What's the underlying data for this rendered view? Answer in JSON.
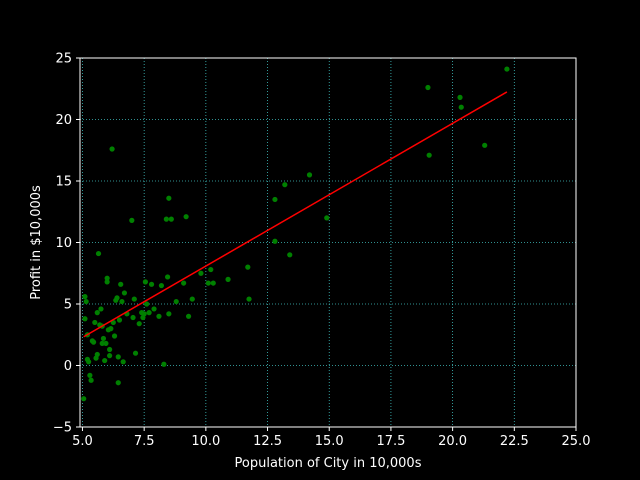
{
  "chart_data": {
    "type": "scatter",
    "title": "",
    "xlabel": "Population of City in 10,000s",
    "ylabel": "Profit in $10,000s",
    "xlim": [
      4.9,
      25.0
    ],
    "ylim": [
      -5,
      25
    ],
    "x_ticks": [
      5.0,
      7.5,
      10.0,
      12.5,
      15.0,
      17.5,
      20.0,
      22.5,
      25.0
    ],
    "x_tick_labels": [
      "5.0",
      "7.5",
      "10.0",
      "12.5",
      "15.0",
      "17.5",
      "20.0",
      "22.5",
      "25.0"
    ],
    "y_ticks": [
      -5,
      0,
      5,
      10,
      15,
      20,
      25
    ],
    "y_tick_labels": [
      "−5",
      "0",
      "5",
      "10",
      "15",
      "20",
      "25"
    ],
    "grid": true,
    "colors": {
      "background": "#000000",
      "points": "#008000",
      "line": "#ff0000",
      "grid": "#40c0c0",
      "axes": "#ffffff"
    },
    "series": [
      {
        "type": "scatter",
        "points": [
          [
            5.05,
            -2.7
          ],
          [
            5.1,
            3.8
          ],
          [
            5.1,
            5.6
          ],
          [
            5.15,
            5.2
          ],
          [
            5.2,
            2.5
          ],
          [
            5.2,
            0.5
          ],
          [
            5.25,
            0.3
          ],
          [
            5.3,
            -0.8
          ],
          [
            5.35,
            -1.2
          ],
          [
            5.4,
            2.0
          ],
          [
            5.45,
            1.9
          ],
          [
            5.5,
            3.5
          ],
          [
            5.55,
            0.6
          ],
          [
            5.6,
            0.9
          ],
          [
            5.6,
            4.3
          ],
          [
            5.65,
            9.1
          ],
          [
            5.7,
            3.3
          ],
          [
            5.75,
            4.6
          ],
          [
            5.8,
            3.2
          ],
          [
            5.8,
            1.8
          ],
          [
            5.85,
            2.2
          ],
          [
            5.9,
            0.4
          ],
          [
            5.95,
            1.8
          ],
          [
            6.0,
            6.8
          ],
          [
            6.0,
            7.1
          ],
          [
            6.05,
            2.9
          ],
          [
            6.1,
            0.8
          ],
          [
            6.1,
            1.3
          ],
          [
            6.15,
            3.0
          ],
          [
            6.2,
            17.6
          ],
          [
            6.25,
            3.5
          ],
          [
            6.3,
            2.4
          ],
          [
            6.35,
            5.3
          ],
          [
            6.4,
            5.5
          ],
          [
            6.45,
            0.7
          ],
          [
            6.45,
            -1.4
          ],
          [
            6.5,
            3.7
          ],
          [
            6.55,
            6.6
          ],
          [
            6.6,
            5.2
          ],
          [
            6.65,
            0.3
          ],
          [
            6.7,
            5.9
          ],
          [
            6.8,
            4.2
          ],
          [
            7.0,
            11.8
          ],
          [
            7.05,
            3.9
          ],
          [
            7.1,
            5.4
          ],
          [
            7.15,
            1.0
          ],
          [
            7.3,
            3.4
          ],
          [
            7.4,
            4.3
          ],
          [
            7.45,
            3.9
          ],
          [
            7.5,
            4.2
          ],
          [
            7.55,
            6.8
          ],
          [
            7.6,
            5.0
          ],
          [
            7.7,
            4.3
          ],
          [
            7.8,
            6.6
          ],
          [
            7.9,
            4.6
          ],
          [
            8.1,
            4.0
          ],
          [
            8.2,
            6.5
          ],
          [
            8.3,
            0.1
          ],
          [
            8.4,
            11.9
          ],
          [
            8.45,
            7.2
          ],
          [
            8.5,
            4.2
          ],
          [
            8.5,
            13.6
          ],
          [
            8.6,
            11.9
          ],
          [
            8.8,
            5.2
          ],
          [
            9.1,
            6.7
          ],
          [
            9.2,
            12.1
          ],
          [
            9.3,
            4.0
          ],
          [
            9.45,
            5.4
          ],
          [
            9.8,
            7.5
          ],
          [
            10.1,
            6.7
          ],
          [
            10.2,
            7.8
          ],
          [
            10.3,
            6.7
          ],
          [
            10.9,
            7.0
          ],
          [
            11.7,
            8.0
          ],
          [
            11.75,
            5.4
          ],
          [
            12.8,
            13.5
          ],
          [
            12.8,
            10.1
          ],
          [
            13.2,
            14.7
          ],
          [
            13.4,
            9.0
          ],
          [
            14.2,
            15.5
          ],
          [
            14.9,
            12.0
          ],
          [
            19.0,
            22.6
          ],
          [
            19.05,
            17.1
          ],
          [
            20.3,
            21.8
          ],
          [
            20.35,
            21.0
          ],
          [
            21.3,
            17.9
          ],
          [
            22.2,
            24.1
          ]
        ]
      },
      {
        "type": "line",
        "points": [
          [
            5.05,
            2.34
          ],
          [
            22.2,
            22.24
          ]
        ]
      }
    ]
  }
}
